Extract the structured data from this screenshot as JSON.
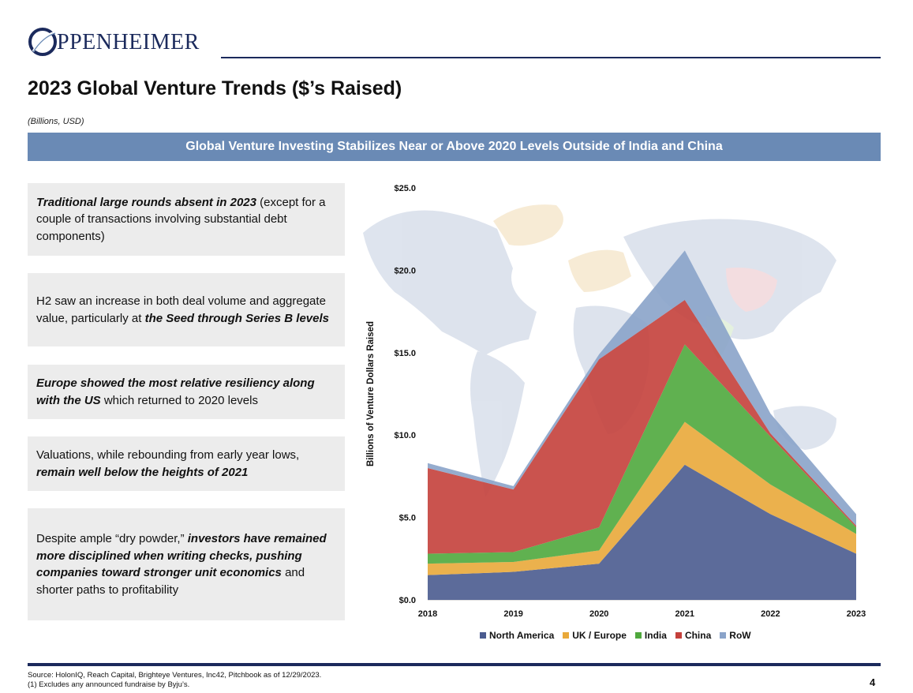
{
  "header": {
    "logo_text": "PPENHEIMER",
    "title": "2023 Global Venture Trends ($’s Raised)",
    "units": "(Billions, USD)",
    "banner": "Global Venture Investing Stabilizes Near or Above 2020 Levels Outside of India and China"
  },
  "boxes": [
    {
      "parts": [
        {
          "text": "Traditional large rounds absent in 2023",
          "em": true
        },
        {
          "text": " (except for a couple of transactions involving substantial debt components)",
          "em": false
        }
      ]
    },
    {
      "parts": [
        {
          "text": "H2 saw an increase in both deal volume and aggregate value, particularly at ",
          "em": false
        },
        {
          "text": "the Seed through Series B levels",
          "em": true
        }
      ]
    },
    {
      "parts": [
        {
          "text": "Europe showed the most relative resiliency along with the US",
          "em": true
        },
        {
          "text": " which returned to 2020 levels",
          "em": false
        }
      ]
    },
    {
      "parts": [
        {
          "text": "Valuations, while rebounding from early year lows, ",
          "em": false
        },
        {
          "text": "remain well below the heights of 2021",
          "em": true
        }
      ]
    },
    {
      "parts": [
        {
          "text": "Despite ample “dry powder,” ",
          "em": false
        },
        {
          "text": "investors have remained more disciplined when writing checks, pushing companies toward stronger unit economics",
          "em": true
        },
        {
          "text": " and shorter paths to profitability",
          "em": false
        }
      ]
    }
  ],
  "chart_data": {
    "type": "area",
    "stacked": true,
    "ylabel": "Billions of Venture Dollars Raised",
    "ylim": [
      0,
      25
    ],
    "yticks": [
      "$0.0",
      "$5.0",
      "$10.0",
      "$15.0",
      "$20.0",
      "$25.0"
    ],
    "ytick_values": [
      0,
      5,
      10,
      15,
      20,
      25
    ],
    "categories": [
      "2018",
      "2019",
      "2020",
      "2021",
      "2022",
      "2023"
    ],
    "legend_position": "bottom",
    "series": [
      {
        "name": "North America",
        "color": "#4a5b8f",
        "values": [
          1.5,
          1.7,
          2.2,
          8.2,
          5.2,
          2.8
        ]
      },
      {
        "name": "UK / Europe",
        "color": "#e9a93a",
        "values": [
          0.7,
          0.6,
          0.8,
          2.6,
          1.8,
          1.2
        ]
      },
      {
        "name": "India",
        "color": "#4fa83d",
        "values": [
          0.6,
          0.6,
          1.4,
          4.7,
          2.9,
          0.4
        ]
      },
      {
        "name": "China",
        "color": "#c4403b",
        "values": [
          5.2,
          3.8,
          10.2,
          2.7,
          0.2,
          0.1
        ]
      },
      {
        "name": "RoW",
        "color": "#8aa3c9",
        "values": [
          0.3,
          0.2,
          0.3,
          3.0,
          1.2,
          0.7
        ]
      }
    ]
  },
  "footer": {
    "source_line1": "Source: HolonIQ, Reach Capital, Brighteye Ventures, Inc42, Pitchbook as of 12/29/2023.",
    "source_line2": "(1) Excludes any announced fundraise by Byju’s.",
    "page": "4"
  }
}
